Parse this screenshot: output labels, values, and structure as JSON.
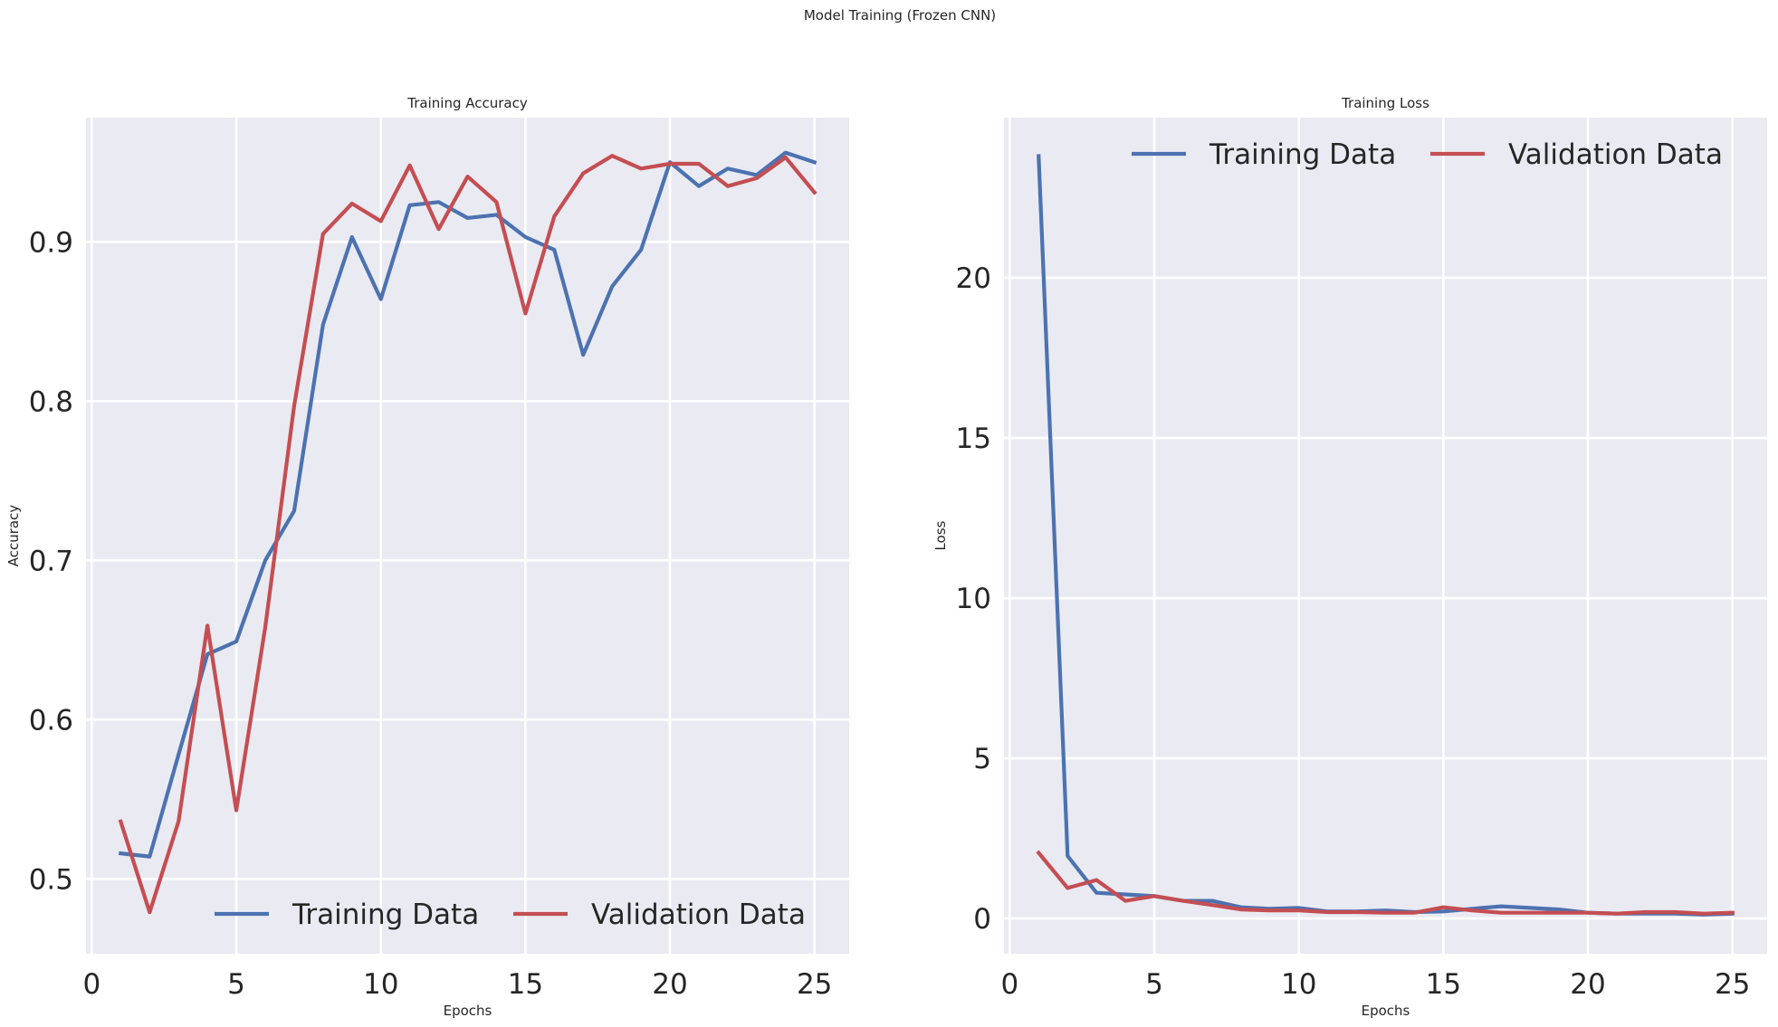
{
  "figure": {
    "suptitle": "Model Training (Frozen CNN)"
  },
  "chart_data": [
    {
      "type": "line",
      "title": "Training Accuracy",
      "xlabel": "Epochs",
      "ylabel": "Accuracy",
      "xlim": [
        -0.2,
        26.2
      ],
      "ylim": [
        0.453,
        0.978
      ],
      "xticks": [
        0,
        5,
        10,
        15,
        20,
        25
      ],
      "yticks": [
        0.5,
        0.6,
        0.7,
        0.8,
        0.9
      ],
      "ytick_labels": [
        "0.5",
        "0.6",
        "0.7",
        "0.8",
        "0.9"
      ],
      "grid": true,
      "legend_position": "lower center",
      "x": [
        1,
        2,
        3,
        4,
        5,
        6,
        7,
        8,
        9,
        10,
        11,
        12,
        13,
        14,
        15,
        16,
        17,
        18,
        19,
        20,
        21,
        22,
        23,
        24,
        25
      ],
      "series": [
        {
          "name": "Training Data",
          "color": "#4c72b0",
          "values": [
            0.516,
            0.514,
            0.578,
            0.641,
            0.649,
            0.7,
            0.731,
            0.848,
            0.903,
            0.864,
            0.923,
            0.925,
            0.915,
            0.917,
            0.903,
            0.895,
            0.829,
            0.872,
            0.895,
            0.95,
            0.935,
            0.946,
            0.942,
            0.956,
            0.95
          ]
        },
        {
          "name": "Validation Data",
          "color": "#c44e52",
          "values": [
            0.536,
            0.479,
            0.536,
            0.659,
            0.543,
            0.658,
            0.797,
            0.905,
            0.924,
            0.913,
            0.948,
            0.908,
            0.941,
            0.925,
            0.855,
            0.916,
            0.943,
            0.954,
            0.946,
            0.949,
            0.949,
            0.935,
            0.94,
            0.953,
            0.931
          ]
        }
      ]
    },
    {
      "type": "line",
      "title": "Training Loss",
      "xlabel": "Epochs",
      "ylabel": "Loss",
      "xlim": [
        -0.2,
        26.2
      ],
      "ylim": [
        -1.1,
        25.0
      ],
      "xticks": [
        0,
        5,
        10,
        15,
        20,
        25
      ],
      "yticks": [
        0,
        5,
        10,
        15,
        20
      ],
      "ytick_labels": [
        "0",
        "5",
        "10",
        "15",
        "20"
      ],
      "grid": true,
      "legend_position": "upper center",
      "x": [
        1,
        2,
        3,
        4,
        5,
        6,
        7,
        8,
        9,
        10,
        11,
        12,
        13,
        14,
        15,
        16,
        17,
        18,
        19,
        20,
        21,
        22,
        23,
        24,
        25
      ],
      "series": [
        {
          "name": "Training Data",
          "color": "#4c72b0",
          "values": [
            23.8,
            1.95,
            0.8,
            0.75,
            0.7,
            0.55,
            0.55,
            0.35,
            0.3,
            0.33,
            0.22,
            0.22,
            0.25,
            0.2,
            0.22,
            0.3,
            0.38,
            0.33,
            0.28,
            0.18,
            0.15,
            0.15,
            0.15,
            0.12,
            0.15
          ]
        },
        {
          "name": "Validation Data",
          "color": "#c44e52",
          "values": [
            2.05,
            0.95,
            1.2,
            0.55,
            0.7,
            0.55,
            0.42,
            0.28,
            0.25,
            0.25,
            0.2,
            0.2,
            0.18,
            0.18,
            0.35,
            0.25,
            0.18,
            0.18,
            0.18,
            0.18,
            0.15,
            0.2,
            0.2,
            0.15,
            0.18
          ]
        }
      ]
    }
  ]
}
